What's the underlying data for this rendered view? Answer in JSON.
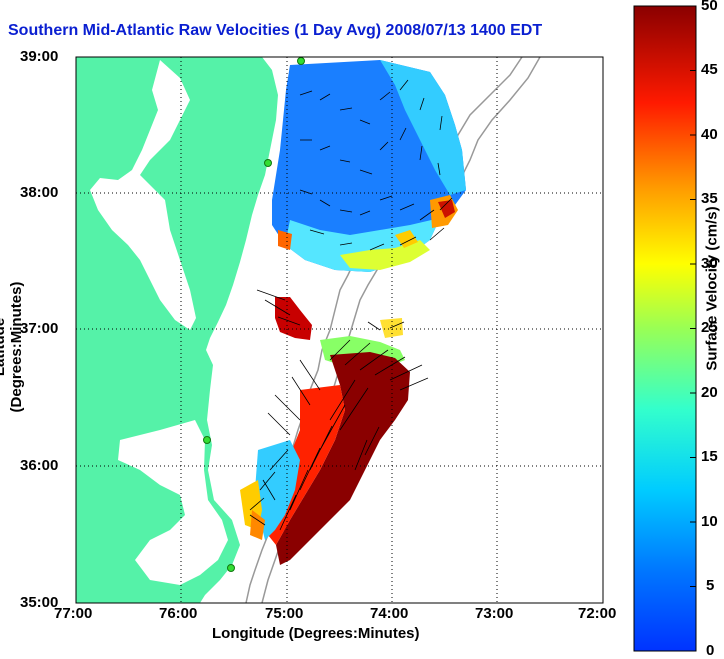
{
  "title": "Southern Mid-Atlantic Raw Velocities (1 Day Avg) 2008/07/13 1400 EDT",
  "xaxis": {
    "label": "Longitude (Degrees:Minutes)",
    "ticks": [
      "77:00",
      "76:00",
      "75:00",
      "74:00",
      "73:00",
      "72:00"
    ]
  },
  "yaxis": {
    "label": "Latitude (Degrees:Minutes)",
    "ticks": [
      "39:00",
      "38:00",
      "37:00",
      "36:00",
      "35:00"
    ]
  },
  "colorbar": {
    "label": "Surface Velocity (cm/s)",
    "ticks": [
      "50",
      "45",
      "40",
      "35",
      "30",
      "25",
      "20",
      "15",
      "10",
      "5",
      "0"
    ],
    "min": 0,
    "max": 50
  },
  "colors": {
    "land": "#55f2a8",
    "title": "#0a1fd1",
    "contour": "#999999",
    "station": "#33dd33"
  },
  "map": {
    "lon_range": [
      -77,
      -72
    ],
    "lat_range": [
      35,
      39
    ],
    "grid": "dotted"
  }
}
